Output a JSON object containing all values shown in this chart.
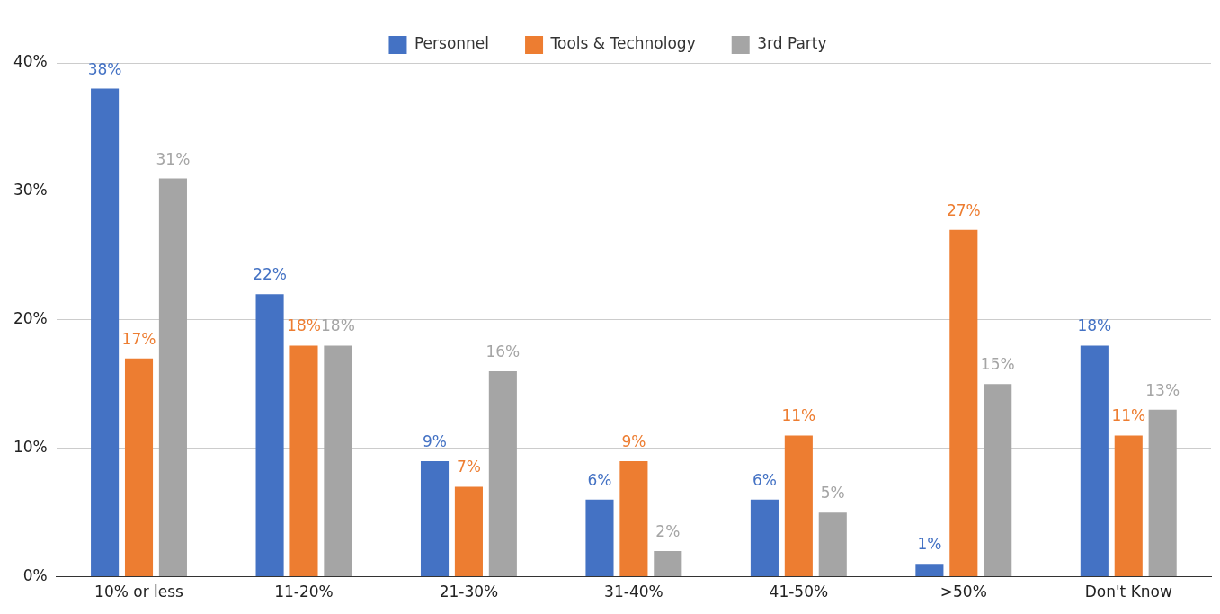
{
  "chart_data": {
    "type": "bar",
    "categories": [
      "10% or less",
      "11-20%",
      "21-30%",
      "31-40%",
      "41-50%",
      ">50%",
      "Don't Know"
    ],
    "series": [
      {
        "name": "Personnel",
        "color": "#4472c4",
        "values": [
          38,
          22,
          9,
          6,
          6,
          1,
          18
        ],
        "value_labels": [
          "38%",
          "22%",
          "9%",
          "6%",
          "6%",
          "1%",
          "18%"
        ]
      },
      {
        "name": "Tools & Technology",
        "color": "#ed7d31",
        "values": [
          17,
          18,
          7,
          9,
          11,
          27,
          11
        ],
        "value_labels": [
          "17%",
          "18%",
          "7%",
          "9%",
          "11%",
          "27%",
          "11%"
        ]
      },
      {
        "name": "3rd Party",
        "color": "#a5a5a5",
        "values": [
          31,
          18,
          16,
          2,
          5,
          15,
          13
        ],
        "value_labels": [
          "31%",
          "18%",
          "16%",
          "2%",
          "5%",
          "15%",
          "13%"
        ]
      }
    ],
    "ylim": [
      0,
      40
    ],
    "yticks": [
      {
        "value": 0,
        "label": "0%"
      },
      {
        "value": 10,
        "label": "10%"
      },
      {
        "value": 20,
        "label": "20%"
      },
      {
        "value": 30,
        "label": "30%"
      },
      {
        "value": 40,
        "label": "40%"
      }
    ],
    "grid": "y",
    "legend": "top"
  }
}
